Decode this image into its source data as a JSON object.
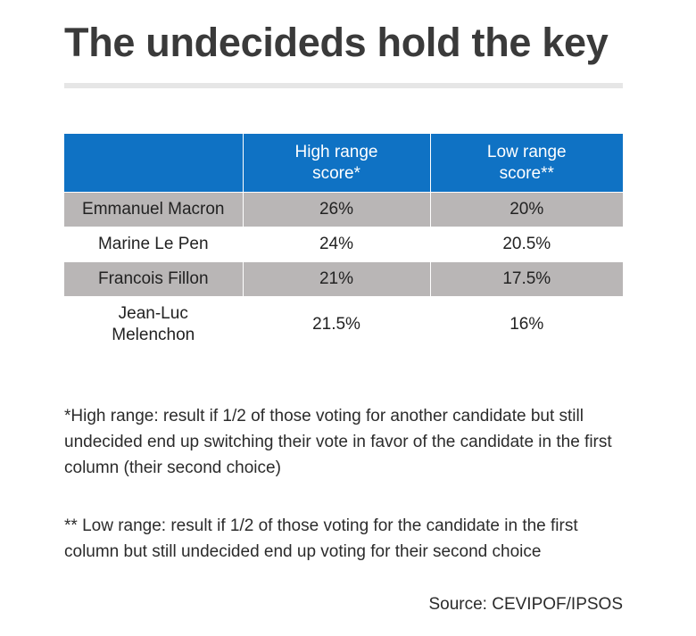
{
  "chart_data": {
    "type": "table",
    "title": "The undecideds hold the key",
    "columns": [
      "",
      "High range\nscore*",
      "Low range\nscore**"
    ],
    "rows": [
      {
        "candidate": "Emmanuel Macron",
        "high": "26%",
        "low": "20%"
      },
      {
        "candidate": "Marine Le Pen",
        "high": "24%",
        "low": "20.5%"
      },
      {
        "candidate": "Francois Fillon",
        "high": "21%",
        "low": "17.5%"
      },
      {
        "candidate": "Jean-Luc\nMelenchon",
        "high": "21.5%",
        "low": "16%"
      }
    ],
    "notes": [
      "*High range: result if 1/2 of those voting for another candidate but still undecided end up switching their vote in favor of the candidate in the first column (their second choice)",
      "** Low range: result if 1/2 of those voting for the candidate in the first column but still undecided end up voting for their second choice"
    ],
    "source": "Source: CEVIPOF/IPSOS",
    "colors": {
      "header": "#0f72c4",
      "shaded_row": "#b9b6b6",
      "title": "#3a3a3a"
    }
  }
}
